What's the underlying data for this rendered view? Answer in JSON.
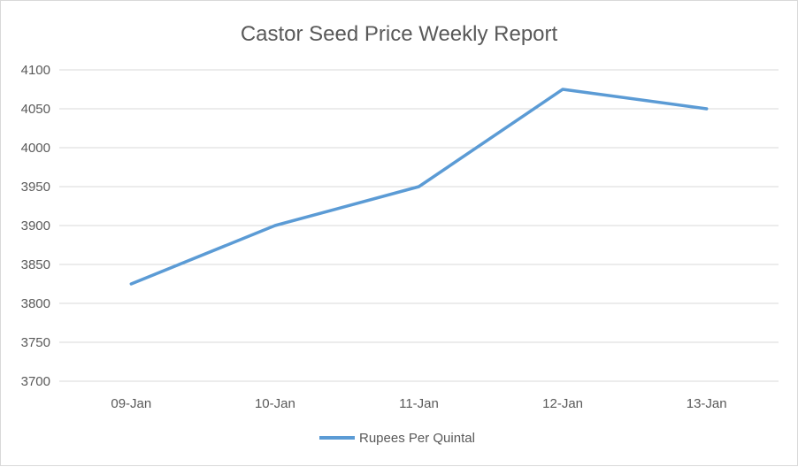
{
  "chart_data": {
    "type": "line",
    "title": "Castor Seed Price Weekly Report",
    "xlabel": "",
    "ylabel": "",
    "categories": [
      "09-Jan",
      "10-Jan",
      "11-Jan",
      "12-Jan",
      "13-Jan"
    ],
    "series": [
      {
        "name": "Rupees Per Quintal",
        "values": [
          3825,
          3900,
          3950,
          4075,
          4050
        ],
        "color": "#5b9bd5"
      }
    ],
    "ylim": [
      3700,
      4100
    ],
    "yticks": [
      3700,
      3750,
      3800,
      3850,
      3900,
      3950,
      4000,
      4050,
      4100
    ],
    "grid": true,
    "legend": "bottom",
    "colors": {
      "grid": "#d9d9d9",
      "text": "#595959",
      "series": "#5b9bd5"
    }
  }
}
